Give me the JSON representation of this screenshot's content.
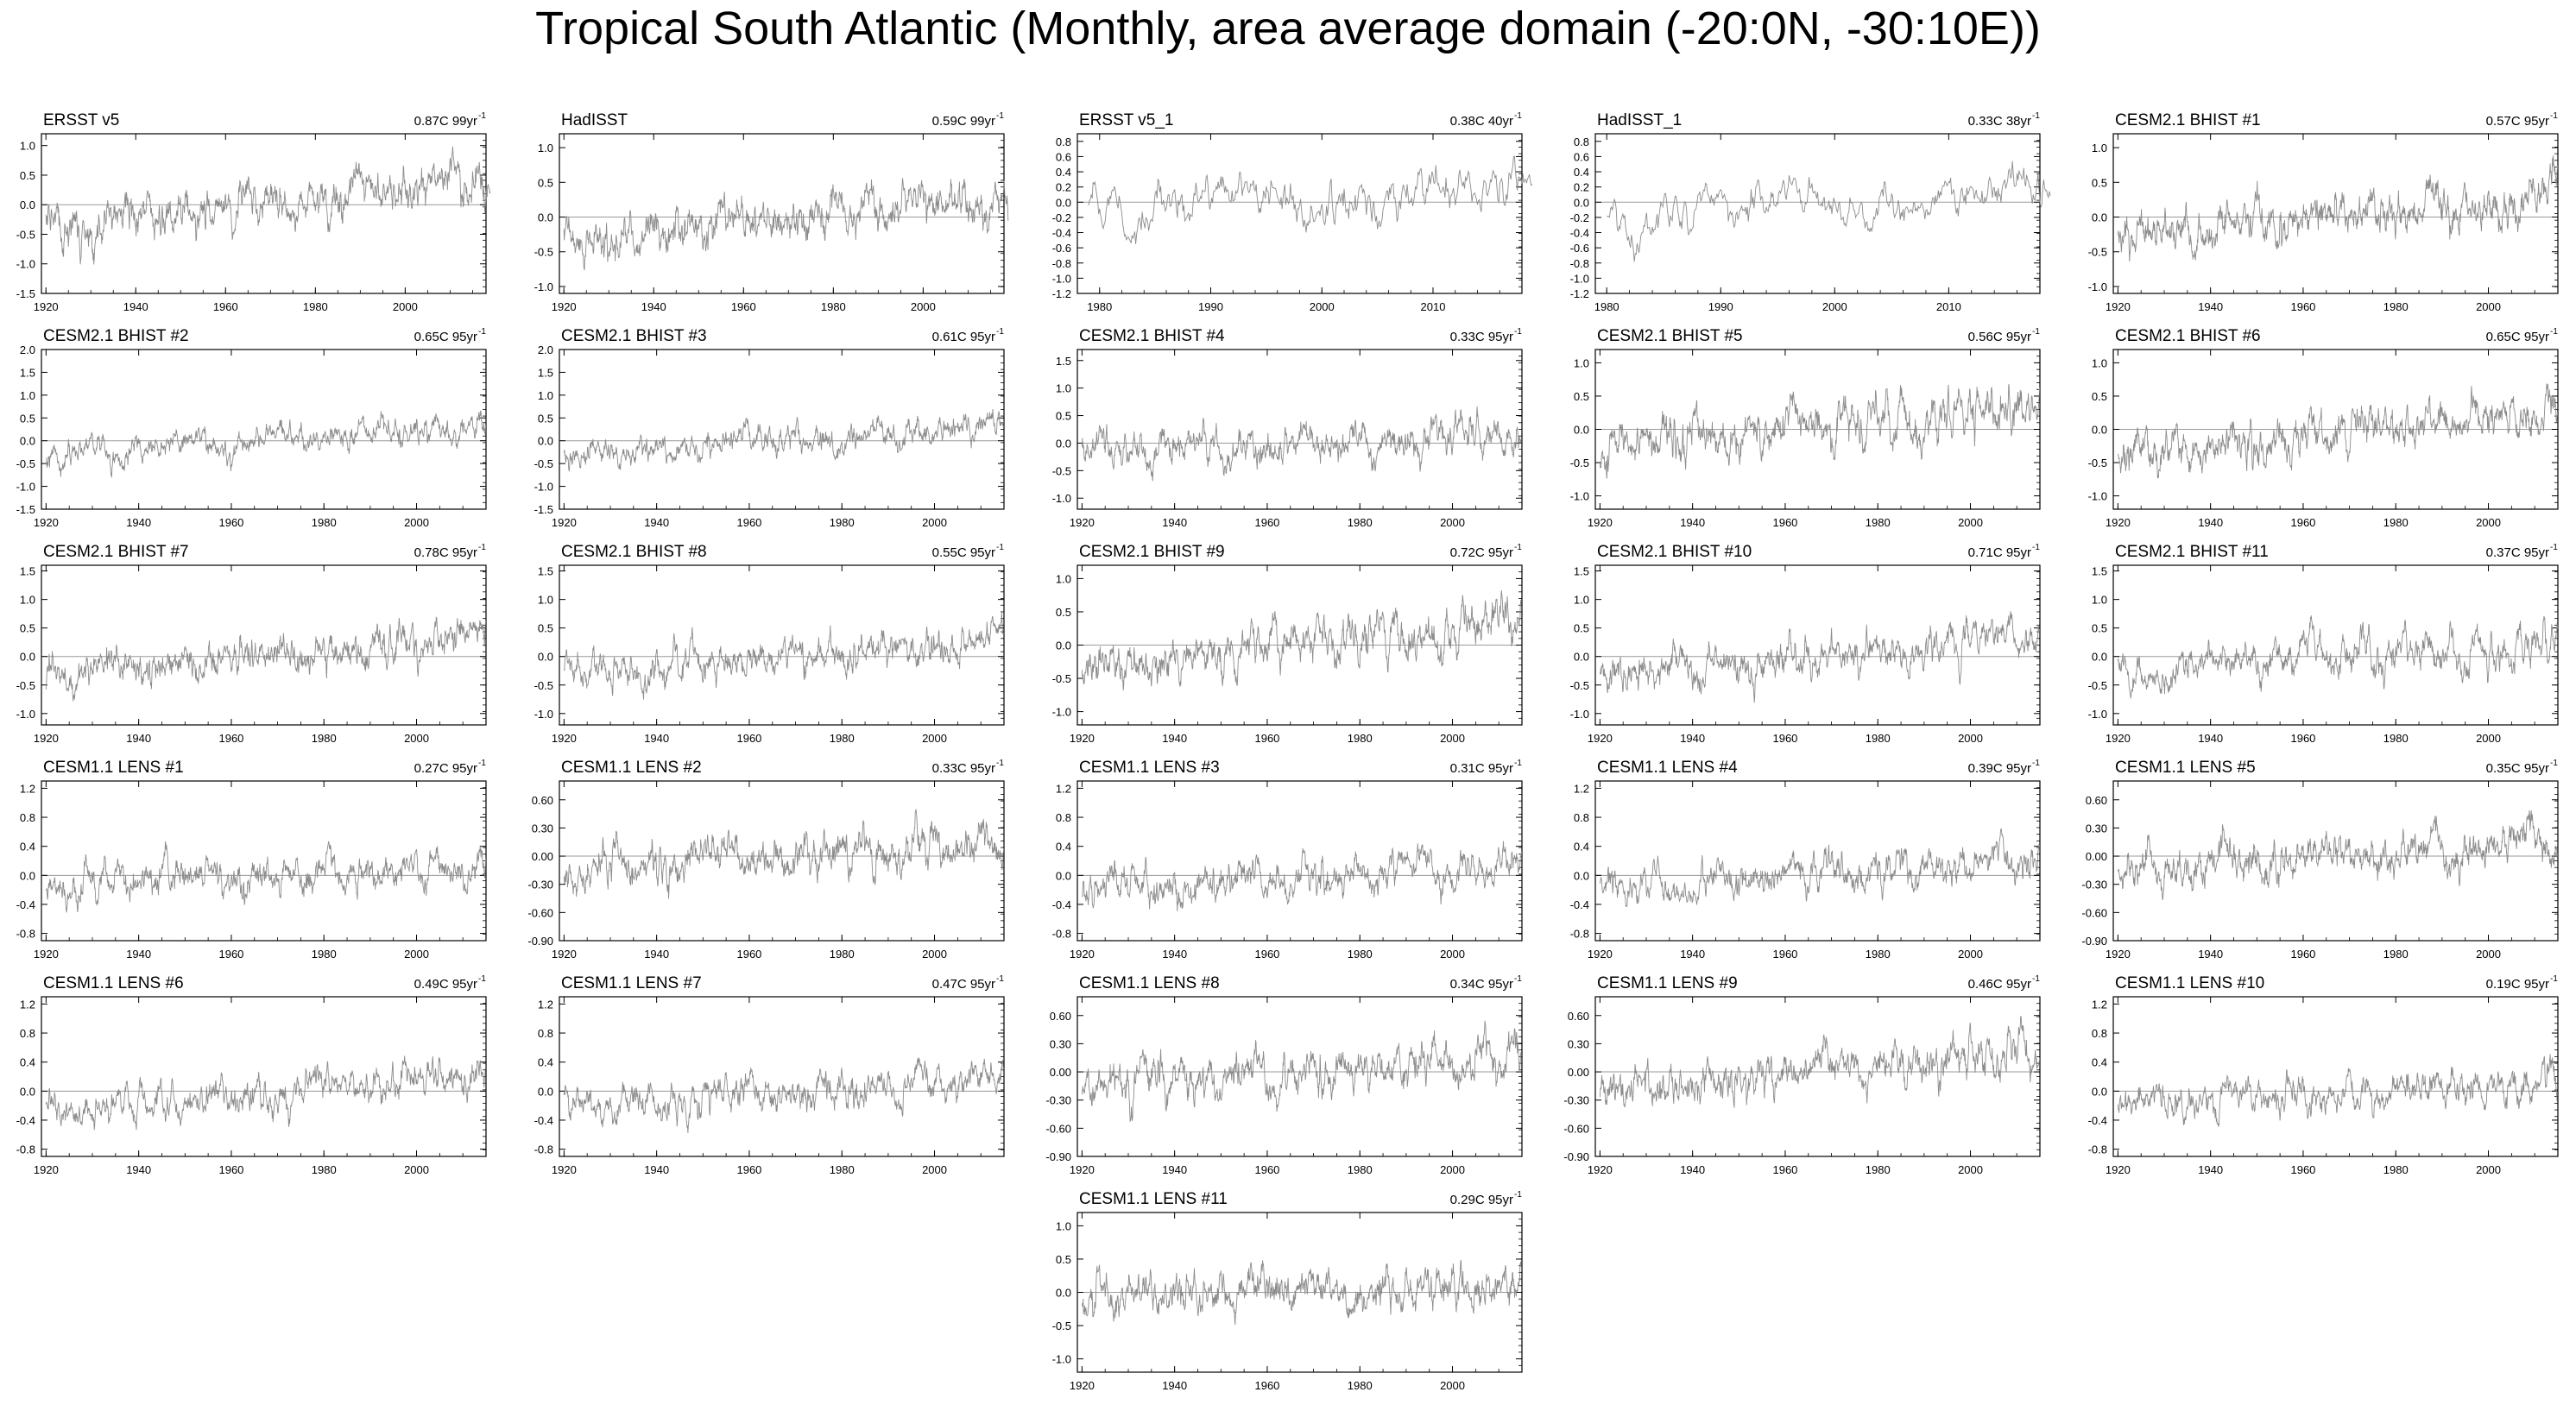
{
  "title": "Tropical South Atlantic (Monthly, area average domain (-20:0N, -30:10E))",
  "chart_data": [
    {
      "type": "line",
      "title": "ERSST v5",
      "trend": "0.87C 99yr",
      "trend_sup": "-1",
      "x_start": 1920,
      "x_end": 2018,
      "xlim": [
        1919,
        2018
      ],
      "ylim": [
        -1.5,
        1.2
      ],
      "yticks": [
        "1.0",
        "0.5",
        "0.0",
        "-0.5",
        "-1.0",
        "-1.5"
      ],
      "xticks": [
        "1920",
        "1940",
        "1960",
        "1980",
        "2000"
      ],
      "amp": 0.38,
      "trend_total": 0.87,
      "seed": 1
    },
    {
      "type": "line",
      "title": "HadISST",
      "trend": "0.59C 99yr",
      "trend_sup": "-1",
      "x_start": 1920,
      "x_end": 2018,
      "xlim": [
        1919,
        2018
      ],
      "ylim": [
        -1.1,
        1.2
      ],
      "yticks": [
        "1.0",
        "0.5",
        "0.0",
        "-0.5",
        "-1.0"
      ],
      "xticks": [
        "1920",
        "1940",
        "1960",
        "1980",
        "2000"
      ],
      "amp": 0.33,
      "trend_total": 0.59,
      "seed": 2
    },
    {
      "type": "line",
      "title": "ERSST v5_1",
      "trend": "0.38C 40yr",
      "trend_sup": "-1",
      "x_start": 1979,
      "x_end": 2018,
      "xlim": [
        1978,
        2018
      ],
      "ylim": [
        -1.2,
        0.9
      ],
      "yticks": [
        "0.8",
        "0.6",
        "0.4",
        "0.2",
        "0.0",
        "-0.2",
        "-0.4",
        "-0.6",
        "-0.8",
        "-1.0",
        "-1.2"
      ],
      "xticks": [
        "1980",
        "1990",
        "2000",
        "2010"
      ],
      "amp": 0.35,
      "trend_total": 0.38,
      "seed": 3
    },
    {
      "type": "line",
      "title": "HadISST_1",
      "trend": "0.33C 38yr",
      "trend_sup": "-1",
      "x_start": 1980,
      "x_end": 2018,
      "xlim": [
        1979,
        2018
      ],
      "ylim": [
        -1.2,
        0.9
      ],
      "yticks": [
        "0.8",
        "0.6",
        "0.4",
        "0.2",
        "0.0",
        "-0.2",
        "-0.4",
        "-0.6",
        "-0.8",
        "-1.0",
        "-1.2"
      ],
      "xticks": [
        "1980",
        "1990",
        "2000",
        "2010"
      ],
      "amp": 0.32,
      "trend_total": 0.33,
      "seed": 4
    },
    {
      "type": "line",
      "title": "CESM2.1 BHIST #1",
      "trend": "0.57C 95yr",
      "trend_sup": "-1",
      "x_start": 1920,
      "x_end": 2014,
      "xlim": [
        1919,
        2015
      ],
      "ylim": [
        -1.1,
        1.2
      ],
      "yticks": [
        "1.0",
        "0.5",
        "0.0",
        "-0.5",
        "-1.0"
      ],
      "xticks": [
        "1920",
        "1940",
        "1960",
        "1980",
        "2000"
      ],
      "amp": 0.34,
      "trend_total": 0.57,
      "seed": 5
    },
    {
      "type": "line",
      "title": "CESM2.1 BHIST #2",
      "trend": "0.65C 95yr",
      "trend_sup": "-1",
      "x_start": 1920,
      "x_end": 2014,
      "xlim": [
        1919,
        2015
      ],
      "ylim": [
        -1.5,
        2.0
      ],
      "yticks": [
        "2.0",
        "1.5",
        "1.0",
        "0.5",
        "0.0",
        "-0.5",
        "-1.0",
        "-1.5"
      ],
      "xticks": [
        "1920",
        "1940",
        "1960",
        "1980",
        "2000"
      ],
      "amp": 0.32,
      "trend_total": 0.65,
      "seed": 6
    },
    {
      "type": "line",
      "title": "CESM2.1 BHIST #3",
      "trend": "0.61C 95yr",
      "trend_sup": "-1",
      "x_start": 1920,
      "x_end": 2014,
      "xlim": [
        1919,
        2015
      ],
      "ylim": [
        -1.5,
        2.0
      ],
      "yticks": [
        "2.0",
        "1.5",
        "1.0",
        "0.5",
        "0.0",
        "-0.5",
        "-1.0",
        "-1.5"
      ],
      "xticks": [
        "1920",
        "1940",
        "1960",
        "1980",
        "2000"
      ],
      "amp": 0.33,
      "trend_total": 0.61,
      "seed": 7
    },
    {
      "type": "line",
      "title": "CESM2.1 BHIST #4",
      "trend": "0.33C 95yr",
      "trend_sup": "-1",
      "x_start": 1920,
      "x_end": 2014,
      "xlim": [
        1919,
        2015
      ],
      "ylim": [
        -1.2,
        1.7
      ],
      "yticks": [
        "1.5",
        "1.0",
        "0.5",
        "0.0",
        "-0.5",
        "-1.0"
      ],
      "xticks": [
        "1920",
        "1940",
        "1960",
        "1980",
        "2000"
      ],
      "amp": 0.36,
      "trend_total": 0.33,
      "seed": 8
    },
    {
      "type": "line",
      "title": "CESM2.1 BHIST #5",
      "trend": "0.56C 95yr",
      "trend_sup": "-1",
      "x_start": 1920,
      "x_end": 2014,
      "xlim": [
        1919,
        2015
      ],
      "ylim": [
        -1.2,
        1.2
      ],
      "yticks": [
        "1.0",
        "0.5",
        "0.0",
        "-0.5",
        "-1.0"
      ],
      "xticks": [
        "1920",
        "1940",
        "1960",
        "1980",
        "2000"
      ],
      "amp": 0.38,
      "trend_total": 0.56,
      "seed": 9
    },
    {
      "type": "line",
      "title": "CESM2.1 BHIST #6",
      "trend": "0.65C 95yr",
      "trend_sup": "-1",
      "x_start": 1920,
      "x_end": 2014,
      "xlim": [
        1919,
        2015
      ],
      "ylim": [
        -1.2,
        1.2
      ],
      "yticks": [
        "1.0",
        "0.5",
        "0.0",
        "-0.5",
        "-1.0"
      ],
      "xticks": [
        "1920",
        "1940",
        "1960",
        "1980",
        "2000"
      ],
      "amp": 0.35,
      "trend_total": 0.65,
      "seed": 10
    },
    {
      "type": "line",
      "title": "CESM2.1 BHIST #7",
      "trend": "0.78C 95yr",
      "trend_sup": "-1",
      "x_start": 1920,
      "x_end": 2014,
      "xlim": [
        1919,
        2015
      ],
      "ylim": [
        -1.2,
        1.6
      ],
      "yticks": [
        "1.5",
        "1.0",
        "0.5",
        "0.0",
        "-0.5",
        "-1.0"
      ],
      "xticks": [
        "1920",
        "1940",
        "1960",
        "1980",
        "2000"
      ],
      "amp": 0.36,
      "trend_total": 0.78,
      "seed": 11
    },
    {
      "type": "line",
      "title": "CESM2.1 BHIST #8",
      "trend": "0.55C 95yr",
      "trend_sup": "-1",
      "x_start": 1920,
      "x_end": 2014,
      "xlim": [
        1919,
        2015
      ],
      "ylim": [
        -1.2,
        1.6
      ],
      "yticks": [
        "1.5",
        "1.0",
        "0.5",
        "0.0",
        "-0.5",
        "-1.0"
      ],
      "xticks": [
        "1920",
        "1940",
        "1960",
        "1980",
        "2000"
      ],
      "amp": 0.33,
      "trend_total": 0.55,
      "seed": 12
    },
    {
      "type": "line",
      "title": "CESM2.1 BHIST #9",
      "trend": "0.72C 95yr",
      "trend_sup": "-1",
      "x_start": 1920,
      "x_end": 2014,
      "xlim": [
        1919,
        2015
      ],
      "ylim": [
        -1.2,
        1.2
      ],
      "yticks": [
        "1.0",
        "0.5",
        "0.0",
        "-0.5",
        "-1.0"
      ],
      "xticks": [
        "1920",
        "1940",
        "1960",
        "1980",
        "2000"
      ],
      "amp": 0.37,
      "trend_total": 0.72,
      "seed": 13
    },
    {
      "type": "line",
      "title": "CESM2.1 BHIST #10",
      "trend": "0.71C 95yr",
      "trend_sup": "-1",
      "x_start": 1920,
      "x_end": 2014,
      "xlim": [
        1919,
        2015
      ],
      "ylim": [
        -1.2,
        1.6
      ],
      "yticks": [
        "1.5",
        "1.0",
        "0.5",
        "0.0",
        "-0.5",
        "-1.0"
      ],
      "xticks": [
        "1920",
        "1940",
        "1960",
        "1980",
        "2000"
      ],
      "amp": 0.35,
      "trend_total": 0.71,
      "seed": 14
    },
    {
      "type": "line",
      "title": "CESM2.1 BHIST #11",
      "trend": "0.37C 95yr",
      "trend_sup": "-1",
      "x_start": 1920,
      "x_end": 2014,
      "xlim": [
        1919,
        2015
      ],
      "ylim": [
        -1.2,
        1.6
      ],
      "yticks": [
        "1.5",
        "1.0",
        "0.5",
        "0.0",
        "-0.5",
        "-1.0"
      ],
      "xticks": [
        "1920",
        "1940",
        "1960",
        "1980",
        "2000"
      ],
      "amp": 0.36,
      "trend_total": 0.37,
      "seed": 15
    },
    {
      "type": "line",
      "title": "CESM1.1 LENS #1",
      "trend": "0.27C 95yr",
      "trend_sup": "-1",
      "x_start": 1920,
      "x_end": 2014,
      "xlim": [
        1919,
        2015
      ],
      "ylim": [
        -0.9,
        1.3
      ],
      "yticks": [
        "1.2",
        "0.8",
        "0.4",
        "0.0",
        "-0.4",
        "-0.8"
      ],
      "xticks": [
        "1920",
        "1940",
        "1960",
        "1980",
        "2000"
      ],
      "amp": 0.27,
      "trend_total": 0.27,
      "seed": 16
    },
    {
      "type": "line",
      "title": "CESM1.1 LENS #2",
      "trend": "0.33C 95yr",
      "trend_sup": "-1",
      "x_start": 1920,
      "x_end": 2014,
      "xlim": [
        1919,
        2015
      ],
      "ylim": [
        -0.9,
        0.8
      ],
      "yticks": [
        "0.60",
        "0.30",
        "0.00",
        "-0.30",
        "-0.60",
        "-0.90"
      ],
      "xticks": [
        "1920",
        "1940",
        "1960",
        "1980",
        "2000"
      ],
      "amp": 0.24,
      "trend_total": 0.33,
      "seed": 17
    },
    {
      "type": "line",
      "title": "CESM1.1 LENS #3",
      "trend": "0.31C 95yr",
      "trend_sup": "-1",
      "x_start": 1920,
      "x_end": 2014,
      "xlim": [
        1919,
        2015
      ],
      "ylim": [
        -0.9,
        1.3
      ],
      "yticks": [
        "1.2",
        "0.8",
        "0.4",
        "0.0",
        "-0.4",
        "-0.8"
      ],
      "xticks": [
        "1920",
        "1940",
        "1960",
        "1980",
        "2000"
      ],
      "amp": 0.26,
      "trend_total": 0.31,
      "seed": 18
    },
    {
      "type": "line",
      "title": "CESM1.1 LENS #4",
      "trend": "0.39C 95yr",
      "trend_sup": "-1",
      "x_start": 1920,
      "x_end": 2014,
      "xlim": [
        1919,
        2015
      ],
      "ylim": [
        -0.9,
        1.3
      ],
      "yticks": [
        "1.2",
        "0.8",
        "0.4",
        "0.0",
        "-0.4",
        "-0.8"
      ],
      "xticks": [
        "1920",
        "1940",
        "1960",
        "1980",
        "2000"
      ],
      "amp": 0.27,
      "trend_total": 0.39,
      "seed": 19
    },
    {
      "type": "line",
      "title": "CESM1.1 LENS #5",
      "trend": "0.35C 95yr",
      "trend_sup": "-1",
      "x_start": 1920,
      "x_end": 2014,
      "xlim": [
        1919,
        2015
      ],
      "ylim": [
        -0.9,
        0.8
      ],
      "yticks": [
        "0.60",
        "0.30",
        "0.00",
        "-0.30",
        "-0.60",
        "-0.90"
      ],
      "xticks": [
        "1920",
        "1940",
        "1960",
        "1980",
        "2000"
      ],
      "amp": 0.24,
      "trend_total": 0.35,
      "seed": 20
    },
    {
      "type": "line",
      "title": "CESM1.1 LENS #6",
      "trend": "0.49C 95yr",
      "trend_sup": "-1",
      "x_start": 1920,
      "x_end": 2014,
      "xlim": [
        1919,
        2015
      ],
      "ylim": [
        -0.9,
        1.3
      ],
      "yticks": [
        "1.2",
        "0.8",
        "0.4",
        "0.0",
        "-0.4",
        "-0.8"
      ],
      "xticks": [
        "1920",
        "1940",
        "1960",
        "1980",
        "2000"
      ],
      "amp": 0.26,
      "trend_total": 0.49,
      "seed": 21
    },
    {
      "type": "line",
      "title": "CESM1.1 LENS #7",
      "trend": "0.47C 95yr",
      "trend_sup": "-1",
      "x_start": 1920,
      "x_end": 2014,
      "xlim": [
        1919,
        2015
      ],
      "ylim": [
        -0.9,
        1.3
      ],
      "yticks": [
        "1.2",
        "0.8",
        "0.4",
        "0.0",
        "-0.4",
        "-0.8"
      ],
      "xticks": [
        "1920",
        "1940",
        "1960",
        "1980",
        "2000"
      ],
      "amp": 0.26,
      "trend_total": 0.47,
      "seed": 22
    },
    {
      "type": "line",
      "title": "CESM1.1 LENS #8",
      "trend": "0.34C 95yr",
      "trend_sup": "-1",
      "x_start": 1920,
      "x_end": 2014,
      "xlim": [
        1919,
        2015
      ],
      "ylim": [
        -0.9,
        0.8
      ],
      "yticks": [
        "0.60",
        "0.30",
        "0.00",
        "-0.30",
        "-0.60",
        "-0.90"
      ],
      "xticks": [
        "1920",
        "1940",
        "1960",
        "1980",
        "2000"
      ],
      "amp": 0.24,
      "trend_total": 0.34,
      "seed": 23
    },
    {
      "type": "line",
      "title": "CESM1.1 LENS #9",
      "trend": "0.46C 95yr",
      "trend_sup": "-1",
      "x_start": 1920,
      "x_end": 2014,
      "xlim": [
        1919,
        2015
      ],
      "ylim": [
        -0.9,
        0.8
      ],
      "yticks": [
        "0.60",
        "0.30",
        "0.00",
        "-0.30",
        "-0.60",
        "-0.90"
      ],
      "xticks": [
        "1920",
        "1940",
        "1960",
        "1980",
        "2000"
      ],
      "amp": 0.24,
      "trend_total": 0.46,
      "seed": 24
    },
    {
      "type": "line",
      "title": "CESM1.1 LENS #10",
      "trend": "0.19C 95yr",
      "trend_sup": "-1",
      "x_start": 1920,
      "x_end": 2014,
      "xlim": [
        1919,
        2015
      ],
      "ylim": [
        -0.9,
        1.3
      ],
      "yticks": [
        "1.2",
        "0.8",
        "0.4",
        "0.0",
        "-0.4",
        "-0.8"
      ],
      "xticks": [
        "1920",
        "1940",
        "1960",
        "1980",
        "2000"
      ],
      "amp": 0.26,
      "trend_total": 0.19,
      "seed": 25
    },
    {
      "type": "line",
      "title": "CESM1.1 LENS #11",
      "trend": "0.29C 95yr",
      "trend_sup": "-1",
      "x_start": 1920,
      "x_end": 2014,
      "xlim": [
        1919,
        2015
      ],
      "ylim": [
        -1.2,
        1.2
      ],
      "yticks": [
        "1.0",
        "0.5",
        "0.0",
        "-0.5",
        "-1.0"
      ],
      "xticks": [
        "1920",
        "1940",
        "1960",
        "1980",
        "2000"
      ],
      "amp": 0.34,
      "trend_total": 0.29,
      "seed": 26
    }
  ]
}
